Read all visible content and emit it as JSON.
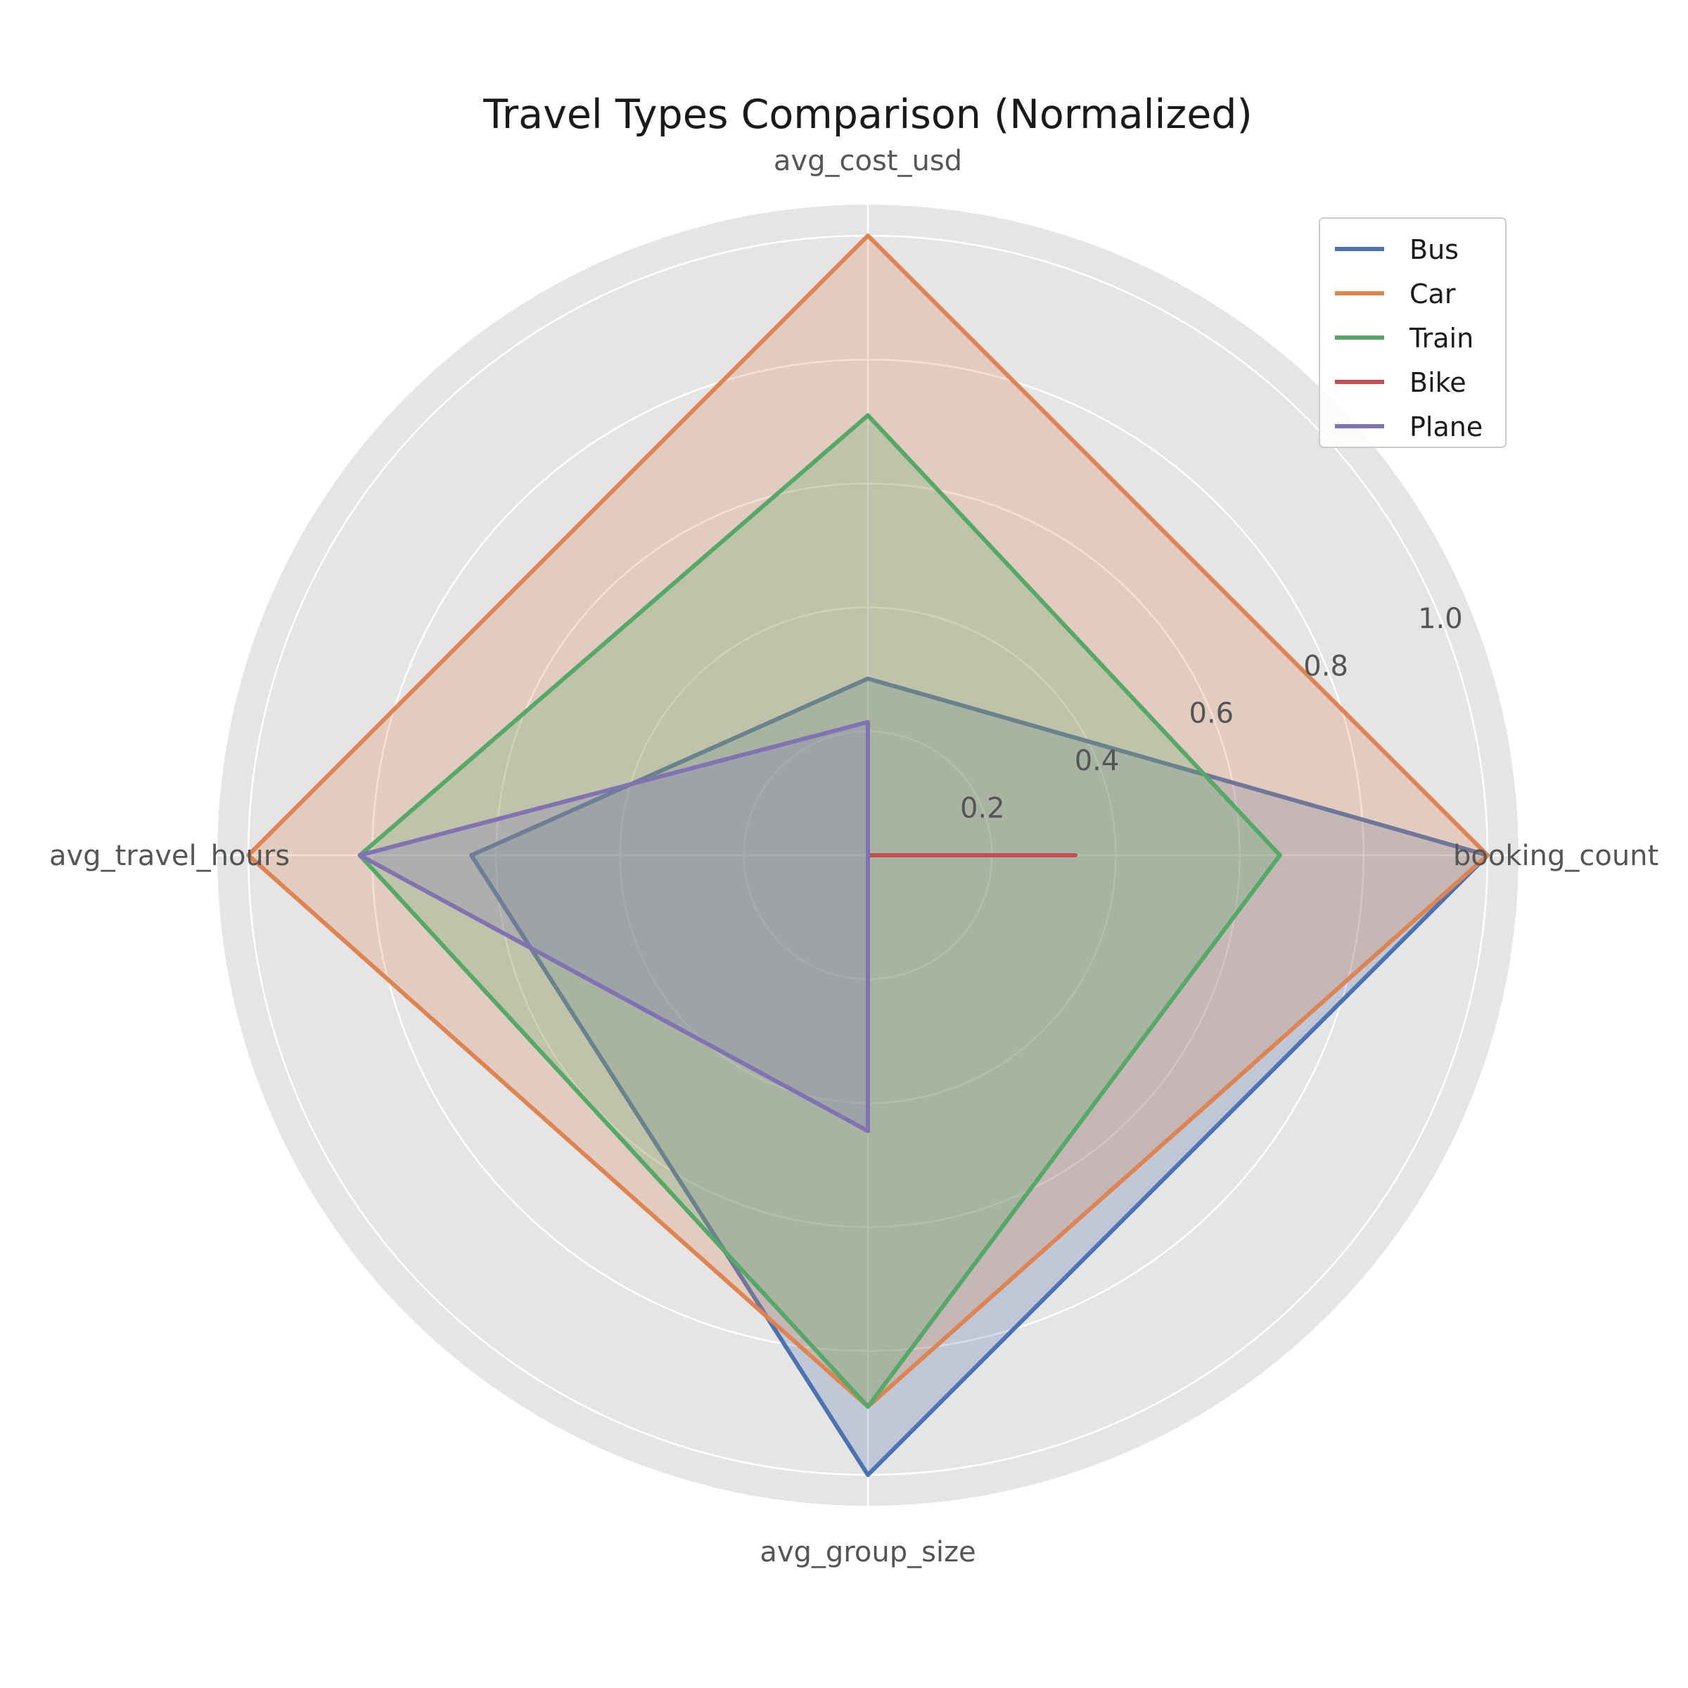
{
  "chart_data": {
    "type": "radar",
    "title": "Travel Types Comparison (Normalized)",
    "axes": [
      "booking_count",
      "avg_cost_usd",
      "avg_travel_hours",
      "avg_group_size"
    ],
    "rlim": [
      0,
      1.05
    ],
    "r_ticks": [
      0.2,
      0.4,
      0.6,
      0.8,
      1.0
    ],
    "r_tick_labels": [
      "0.2",
      "0.4",
      "0.6",
      "0.8",
      "1.0"
    ],
    "grid": true,
    "legend_position": "top-right",
    "series": [
      {
        "name": "Bus",
        "color": "#4c72b0",
        "values": [
          1.0,
          0.285,
          0.64,
          1.0
        ]
      },
      {
        "name": "Car",
        "color": "#dd8452",
        "values": [
          1.0,
          1.0,
          1.0,
          0.89
        ]
      },
      {
        "name": "Train",
        "color": "#55a868",
        "values": [
          0.665,
          0.71,
          0.82,
          0.89
        ]
      },
      {
        "name": "Bike",
        "color": "#c44e52",
        "values": [
          0.335,
          0.0,
          0.0,
          0.0
        ]
      },
      {
        "name": "Plane",
        "color": "#8172b3",
        "values": [
          0.0,
          0.215,
          0.82,
          0.445
        ]
      }
    ]
  }
}
